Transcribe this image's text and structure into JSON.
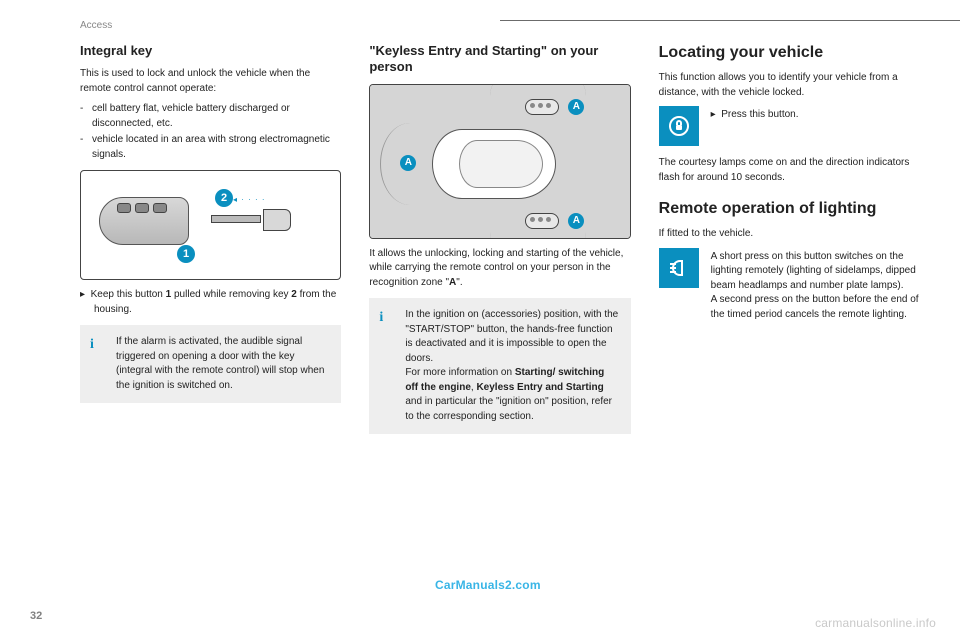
{
  "section_label": "Access",
  "page_number": "32",
  "watermark_primary": "CarManuals2.com",
  "watermark_secondary": "carmanualsonline.info",
  "colors": {
    "accent": "#0a8fbf",
    "info_bg": "#eeeeee",
    "text": "#222222",
    "muted": "#888888",
    "figure_bg": "#d5d5d5",
    "link": "#39b5e6",
    "watermark_grey": "#c9c9c9"
  },
  "col1": {
    "heading": "Integral key",
    "intro": "This is used to lock and unlock the vehicle when the remote control cannot operate:",
    "items": [
      "cell battery flat, vehicle battery discharged or disconnected, etc.",
      "vehicle located in an area with strong electromagnetic signals."
    ],
    "fig": {
      "badge1": "1",
      "badge2": "2"
    },
    "step_prefix": "▸",
    "step_html": "Keep this button <b>1</b> pulled while removing key <b>2</b> from the housing.",
    "info": "If the alarm is activated, the audible signal triggered on opening a door with the key (integral with the remote control) will stop when the ignition is switched on."
  },
  "col2": {
    "heading": "\"Keyless Entry and Starting\" on your person",
    "fig": {
      "label_a": "A"
    },
    "para_html": "It allows the unlocking, locking and starting of the vehicle, while carrying the remote control on your person in the recognition zone \"<b>A</b>\".",
    "info_html": "In the ignition on (accessories) position, with the \"START/STOP\" button, the hands-free function is deactivated and it is impossible to open the doors.<br>For more information on <b>Starting/ switching off the engine</b>, <b>Keyless Entry and Starting</b> and in particular the \"ignition on\" position, refer to the corresponding section."
  },
  "col3": {
    "locating": {
      "heading": "Locating your vehicle",
      "intro": "This function allows you to identify your vehicle from a distance, with the vehicle locked.",
      "step_prefix": "▸",
      "step": "Press this button.",
      "after": "The courtesy lamps come on and the direction indicators flash for around 10 seconds."
    },
    "lighting": {
      "heading": "Remote operation of lighting",
      "sub": "If fitted to the vehicle.",
      "text": "A short press on this button switches on the lighting remotely (lighting of sidelamps, dipped beam headlamps and number plate lamps).\nA second press on the button before the end of the timed period cancels the remote lighting."
    }
  }
}
